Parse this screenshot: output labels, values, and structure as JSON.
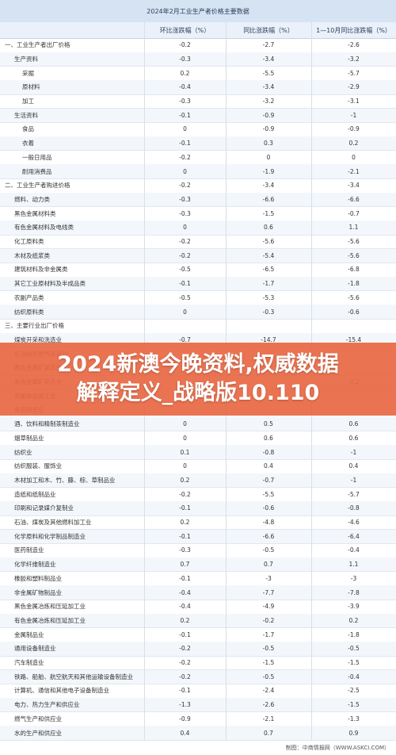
{
  "table": {
    "title": "2024年2月工业生产者价格主要数据",
    "headers": [
      "",
      "环比涨跌幅（%）",
      "同比涨跌幅（%）",
      "1—10月同比涨跌幅（%）"
    ],
    "rows": [
      {
        "name": "一、工业生产者出厂价格",
        "level": 0,
        "mom": "-0.2",
        "yoy": "-2.7",
        "ytd": "-2.6"
      },
      {
        "name": "生产资料",
        "level": 1,
        "mom": "-0.3",
        "yoy": "-3.4",
        "ytd": "-3.2"
      },
      {
        "name": "采掘",
        "level": 2,
        "mom": "0.2",
        "yoy": "-5.5",
        "ytd": "-5.7"
      },
      {
        "name": "原材料",
        "level": 2,
        "mom": "-0.4",
        "yoy": "-3.4",
        "ytd": "-2.9"
      },
      {
        "name": "加工",
        "level": 2,
        "mom": "-0.3",
        "yoy": "-3.2",
        "ytd": "-3.1"
      },
      {
        "name": "生活资料",
        "level": 1,
        "mom": "-0.1",
        "yoy": "-0.9",
        "ytd": "-1"
      },
      {
        "name": "食品",
        "level": 2,
        "mom": "0",
        "yoy": "-0.9",
        "ytd": "-0.9"
      },
      {
        "name": "衣着",
        "level": 2,
        "mom": "-0.1",
        "yoy": "0.3",
        "ytd": "0.2"
      },
      {
        "name": "一般日用品",
        "level": 2,
        "mom": "-0.2",
        "yoy": "0",
        "ytd": "0"
      },
      {
        "name": "耐用消费品",
        "level": 2,
        "mom": "0",
        "yoy": "-1.9",
        "ytd": "-2.1"
      },
      {
        "name": "二、工业生产者购进价格",
        "level": 0,
        "mom": "-0.2",
        "yoy": "-3.4",
        "ytd": "-3.4"
      },
      {
        "name": "燃料、动力类",
        "level": 1,
        "mom": "-0.3",
        "yoy": "-6.6",
        "ytd": "-6.6"
      },
      {
        "name": "黑色金属材料类",
        "level": 1,
        "mom": "-0.3",
        "yoy": "-1.5",
        "ytd": "-0.7"
      },
      {
        "name": "有色金属材料及电线类",
        "level": 1,
        "mom": "0",
        "yoy": "0.6",
        "ytd": "1.1"
      },
      {
        "name": "化工原料类",
        "level": 1,
        "mom": "-0.2",
        "yoy": "-5.6",
        "ytd": "-5.6"
      },
      {
        "name": "木材及纸浆类",
        "level": 1,
        "mom": "-0.2",
        "yoy": "-5.4",
        "ytd": "-5.6"
      },
      {
        "name": "建筑材料及非金属类",
        "level": 1,
        "mom": "-0.5",
        "yoy": "-6.5",
        "ytd": "-6.8"
      },
      {
        "name": "其它工业原材料及半成品类",
        "level": 1,
        "mom": "-0.1",
        "yoy": "-1.7",
        "ytd": "-1.8"
      },
      {
        "name": "农副产品类",
        "level": 1,
        "mom": "-0.5",
        "yoy": "-5.3",
        "ytd": "-5.6"
      },
      {
        "name": "纺织原料类",
        "level": 1,
        "mom": "0",
        "yoy": "-0.3",
        "ytd": "-0.6"
      },
      {
        "name": "三、主要行业出厂价格",
        "level": 0,
        "mom": "",
        "yoy": "",
        "ytd": ""
      },
      {
        "name": "煤炭开采和洗选业",
        "level": 1,
        "mom": "-0.7",
        "yoy": "-14.7",
        "ytd": "-15.4"
      },
      {
        "name": "石油和天然气开采业",
        "level": 1,
        "mom": "",
        "yoy": "",
        "ytd": ""
      },
      {
        "name": "黑色金属矿采选业",
        "level": 1,
        "mom": "",
        "yoy": "",
        "ytd": ""
      },
      {
        "name": "有色金属矿采选业",
        "level": 1,
        "mom": "",
        "yoy": "",
        "ytd": "-2.2"
      },
      {
        "name": "农副食品加工业",
        "level": 1,
        "mom": "",
        "yoy": "",
        "ytd": ""
      },
      {
        "name": "食品制造业",
        "level": 1,
        "mom": "",
        "yoy": "",
        "ytd": ""
      },
      {
        "name": "酒、饮料和精制茶制造业",
        "level": 1,
        "mom": "0",
        "yoy": "0.5",
        "ytd": "0.6"
      },
      {
        "name": "烟草制品业",
        "level": 1,
        "mom": "0",
        "yoy": "0.6",
        "ytd": "0.6"
      },
      {
        "name": "纺织业",
        "level": 1,
        "mom": "0.1",
        "yoy": "-0.8",
        "ytd": "-1"
      },
      {
        "name": "纺织服装、服饰业",
        "level": 1,
        "mom": "0",
        "yoy": "0.4",
        "ytd": "0.4"
      },
      {
        "name": "木材加工和木、竹、藤、棕、草制品业",
        "level": 1,
        "mom": "0.2",
        "yoy": "-0.7",
        "ytd": "-1"
      },
      {
        "name": "造纸和纸制品业",
        "level": 1,
        "mom": "-0.2",
        "yoy": "-5.5",
        "ytd": "-5.7"
      },
      {
        "name": "印刷和记录媒介复制业",
        "level": 1,
        "mom": "-0.1",
        "yoy": "-0.6",
        "ytd": "-0.8"
      },
      {
        "name": "石油、煤炭及其他燃料加工业",
        "level": 1,
        "mom": "0.2",
        "yoy": "-4.8",
        "ytd": "-4.6"
      },
      {
        "name": "化学原料和化学制品制造业",
        "level": 1,
        "mom": "-0.1",
        "yoy": "-6.6",
        "ytd": "-6.4"
      },
      {
        "name": "医药制造业",
        "level": 1,
        "mom": "-0.3",
        "yoy": "-0.5",
        "ytd": "-0.4"
      },
      {
        "name": "化学纤维制造业",
        "level": 1,
        "mom": "0.7",
        "yoy": "0.7",
        "ytd": "1.1"
      },
      {
        "name": "橡胶和塑料制品业",
        "level": 1,
        "mom": "-0.1",
        "yoy": "-3",
        "ytd": "-3"
      },
      {
        "name": "非金属矿物制品业",
        "level": 1,
        "mom": "-0.4",
        "yoy": "-7.7",
        "ytd": "-7.8"
      },
      {
        "name": "黑色金属冶炼和压延加工业",
        "level": 1,
        "mom": "-0.4",
        "yoy": "-4.9",
        "ytd": "-3.9"
      },
      {
        "name": "有色金属冶炼和压延加工业",
        "level": 1,
        "mom": "0.2",
        "yoy": "-0.2",
        "ytd": "0.2"
      },
      {
        "name": "金属制品业",
        "level": 1,
        "mom": "-0.1",
        "yoy": "-1.7",
        "ytd": "-1.8"
      },
      {
        "name": "通用设备制造业",
        "level": 1,
        "mom": "-0.2",
        "yoy": "-0.5",
        "ytd": "-0.5"
      },
      {
        "name": "汽车制造业",
        "level": 1,
        "mom": "-0.2",
        "yoy": "-1.5",
        "ytd": "-1.5"
      },
      {
        "name": "铁路、船舶、航空航天和其他运输设备制造业",
        "level": 1,
        "mom": "-0.2",
        "yoy": "-0.5",
        "ytd": "-0.4"
      },
      {
        "name": "计算机、通信和其他电子设备制造业",
        "level": 1,
        "mom": "-0.1",
        "yoy": "-2.4",
        "ytd": "-2.5"
      },
      {
        "name": "电力、热力生产和供应业",
        "level": 1,
        "mom": "-1.3",
        "yoy": "-2.6",
        "ytd": "-1.5"
      },
      {
        "name": "燃气生产和供应业",
        "level": 1,
        "mom": "-0.9",
        "yoy": "-2.1",
        "ytd": "-1.3"
      },
      {
        "name": "水的生产和供应业",
        "level": 1,
        "mom": "0.4",
        "yoy": "0.7",
        "ytd": "0.9"
      }
    ]
  },
  "banner": {
    "line1": "2024新澳今晚资料,权威数据",
    "line2": "解释定义_战略版10.110"
  },
  "footer": {
    "source": "制图：中商情报网（WWW.ASKCI.COM）"
  }
}
